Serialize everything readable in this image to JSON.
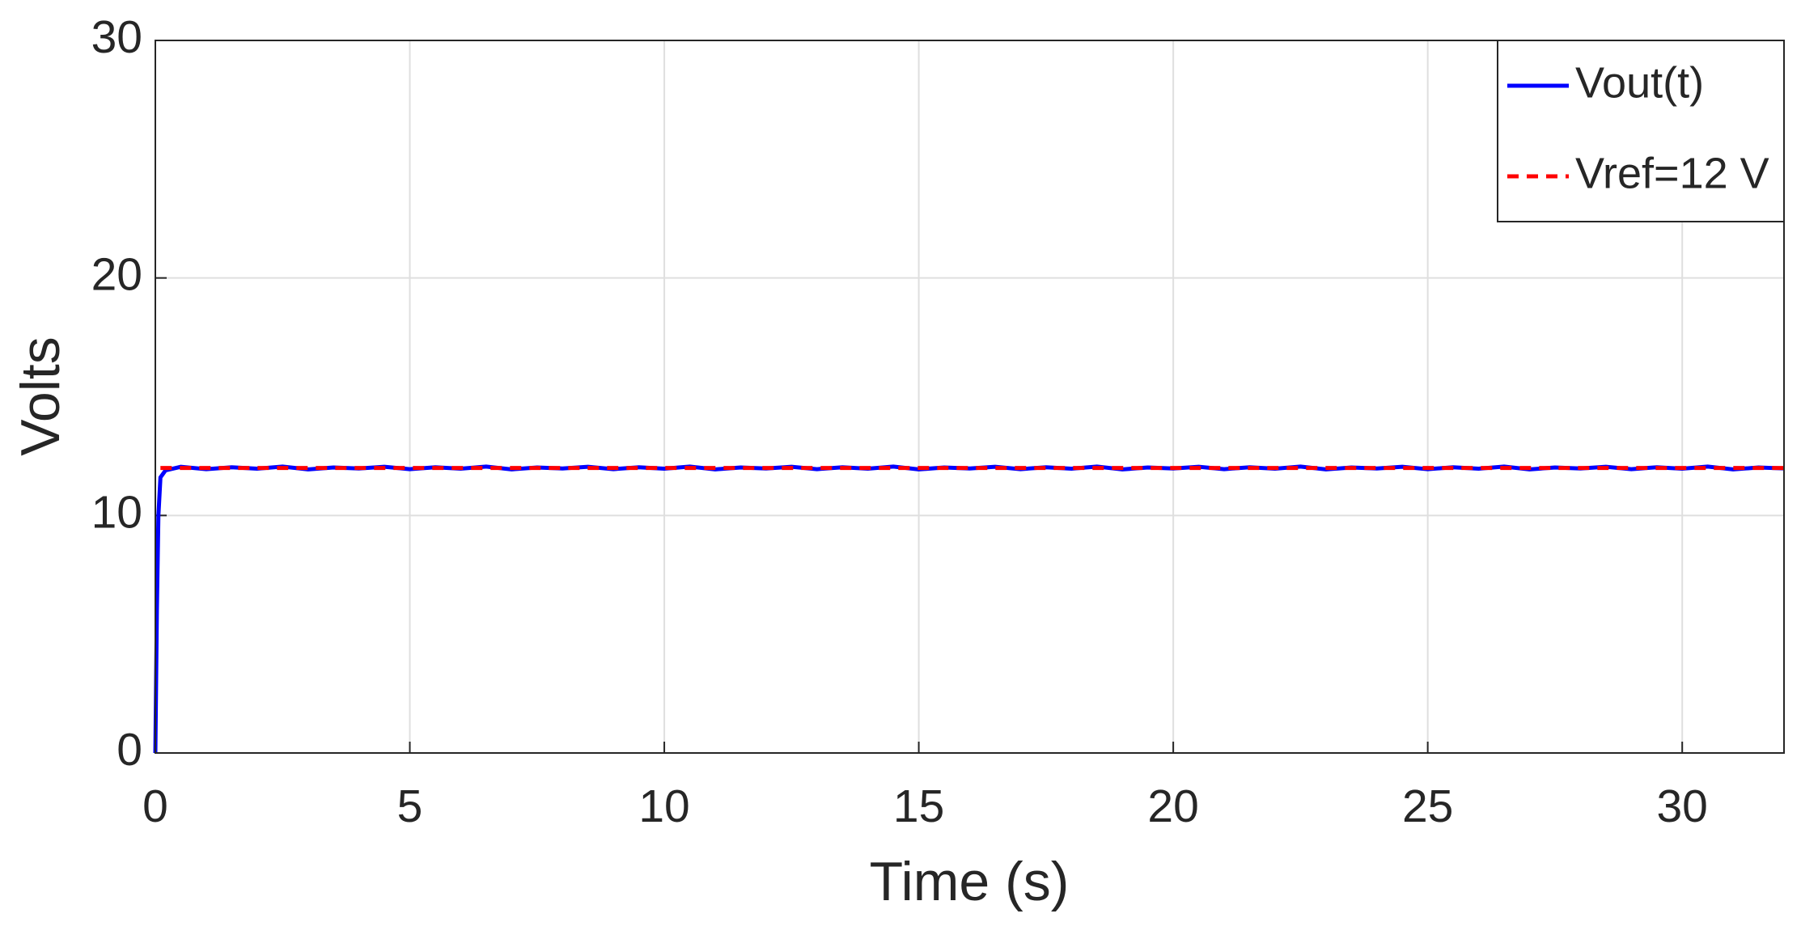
{
  "chart_data": {
    "type": "line",
    "xlabel": "Time (s)",
    "ylabel": "Volts",
    "xlim": [
      0,
      32
    ],
    "xticks": [
      0,
      5,
      10,
      15,
      20,
      25,
      30
    ],
    "ylim": [
      0,
      30
    ],
    "yticks": [
      0,
      10,
      20,
      30
    ],
    "grid": true,
    "legend": "upper right",
    "series": [
      {
        "name": "Vout(t)",
        "color": "#0000ff",
        "linestyle": "solid",
        "x": [
          0,
          0.03,
          0.06,
          0.1,
          0.2,
          0.5,
          1,
          1.5,
          2,
          2.5,
          3,
          3.5,
          4,
          4.5,
          5,
          5.5,
          6,
          6.5,
          7,
          7.5,
          8,
          8.5,
          9,
          9.5,
          10,
          10.5,
          11,
          11.5,
          12,
          12.5,
          13,
          13.5,
          14,
          14.5,
          15,
          15.5,
          16,
          16.5,
          17,
          17.5,
          18,
          18.5,
          19,
          19.5,
          20,
          20.5,
          21,
          21.5,
          22,
          22.5,
          23,
          23.5,
          24,
          24.5,
          25,
          25.5,
          26,
          26.5,
          27,
          27.5,
          28,
          28.5,
          29,
          29.5,
          30,
          30.5,
          31,
          31.5,
          32
        ],
        "values": [
          0,
          6,
          10,
          11.6,
          11.9,
          12.05,
          11.95,
          12.03,
          11.97,
          12.06,
          11.94,
          12.02,
          11.98,
          12.05,
          11.95,
          12.03,
          11.97,
          12.06,
          11.94,
          12.02,
          11.98,
          12.05,
          11.95,
          12.03,
          11.97,
          12.06,
          11.94,
          12.02,
          11.98,
          12.05,
          11.95,
          12.03,
          11.97,
          12.06,
          11.94,
          12.02,
          11.98,
          12.05,
          11.95,
          12.03,
          11.97,
          12.06,
          11.94,
          12.02,
          11.98,
          12.05,
          11.95,
          12.03,
          11.97,
          12.06,
          11.94,
          12.02,
          11.98,
          12.05,
          11.95,
          12.03,
          11.97,
          12.06,
          11.94,
          12.02,
          11.98,
          12.05,
          11.95,
          12.03,
          11.97,
          12.06,
          11.94,
          12.02,
          11.98
        ]
      },
      {
        "name": "Vref=12 V",
        "color": "#ff0000",
        "linestyle": "dashed",
        "x": [
          0.1,
          32
        ],
        "values": [
          12,
          12
        ]
      }
    ]
  }
}
